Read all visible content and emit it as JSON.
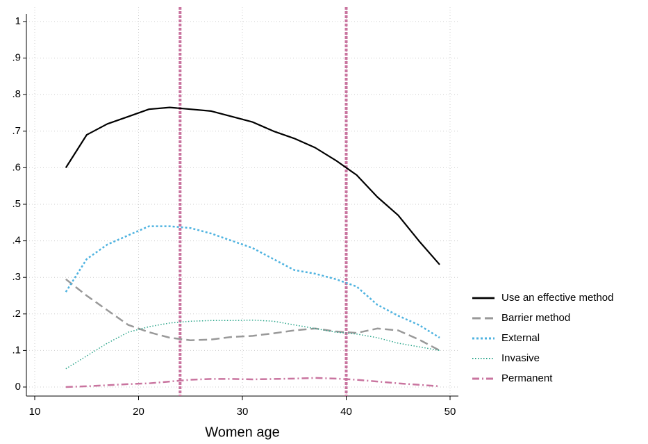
{
  "chart_data": {
    "type": "line",
    "x_label": "Women age",
    "x": [
      13,
      15,
      17,
      19,
      21,
      23,
      25,
      27,
      29,
      31,
      33,
      35,
      37,
      39,
      41,
      43,
      45,
      47,
      49
    ],
    "series": [
      {
        "name": "Use an effective method",
        "color": "#000000",
        "style": "solid",
        "values": [
          0.6,
          0.69,
          0.72,
          0.74,
          0.76,
          0.765,
          0.76,
          0.755,
          0.74,
          0.725,
          0.7,
          0.68,
          0.655,
          0.62,
          0.58,
          0.52,
          0.47,
          0.4,
          0.335
        ]
      },
      {
        "name": "Barrier method",
        "color": "#999999",
        "style": "dashed",
        "values": [
          0.295,
          0.25,
          0.21,
          0.17,
          0.15,
          0.135,
          0.128,
          0.13,
          0.137,
          0.14,
          0.147,
          0.155,
          0.16,
          0.152,
          0.148,
          0.16,
          0.155,
          0.13,
          0.1
        ]
      },
      {
        "name": "External",
        "color": "#4fb3e0",
        "style": "dotted",
        "values": [
          0.26,
          0.35,
          0.39,
          0.415,
          0.44,
          0.44,
          0.435,
          0.42,
          0.4,
          0.38,
          0.35,
          0.32,
          0.31,
          0.295,
          0.275,
          0.225,
          0.195,
          0.17,
          0.135
        ]
      },
      {
        "name": "Invasive",
        "color": "#2aa58a",
        "style": "finedot",
        "values": [
          0.05,
          0.085,
          0.12,
          0.15,
          0.165,
          0.175,
          0.18,
          0.182,
          0.182,
          0.183,
          0.18,
          0.17,
          0.16,
          0.15,
          0.145,
          0.135,
          0.12,
          0.11,
          0.1
        ]
      },
      {
        "name": "Permanent",
        "color": "#c9749f",
        "style": "dashdot",
        "values": [
          0,
          0.002,
          0.005,
          0.008,
          0.01,
          0.015,
          0.02,
          0.022,
          0.022,
          0.021,
          0.022,
          0.023,
          0.025,
          0.023,
          0.02,
          0.015,
          0.01,
          0.006,
          0.002
        ]
      }
    ],
    "xlim": [
      10,
      50
    ],
    "xticks": [
      10,
      20,
      30,
      40,
      50
    ],
    "ylim": [
      0,
      1
    ],
    "yticks": [
      0,
      {
        "value": 0.1,
        "label": ".1"
      },
      {
        "value": 0.2,
        "label": ".2"
      },
      {
        "value": 0.3,
        "label": ".3"
      },
      {
        "value": 0.4,
        "label": ".4"
      },
      {
        "value": 0.5,
        "label": ".5"
      },
      {
        "value": 0.6,
        "label": ".6"
      },
      {
        "value": 0.7,
        "label": ".7"
      },
      {
        "value": 0.8,
        "label": ".8"
      },
      {
        "value": 0.9,
        "label": ".9"
      },
      1
    ],
    "xlines": [
      24,
      40
    ],
    "xline_color": "#c9749f",
    "grid": true,
    "legend": "right"
  }
}
